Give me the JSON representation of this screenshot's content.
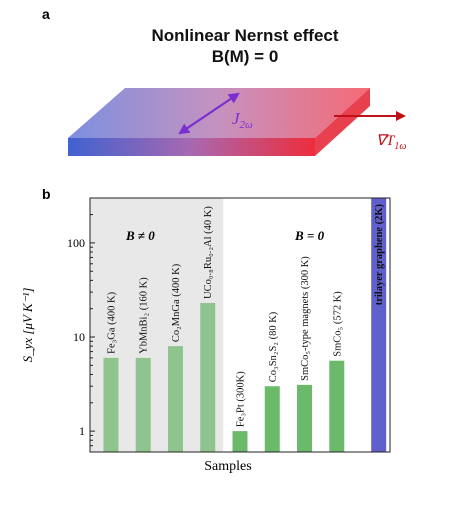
{
  "panel_a": {
    "label": "a",
    "title_line1": "Nonlinear Nernst effect",
    "title_line2": "B(M) = 0",
    "current_label": {
      "symbol": "J",
      "subscript": "2ω"
    },
    "gradient_label": {
      "symbol": "∇T",
      "subscript": "1ω"
    },
    "colors": {
      "slab_left": "#5b78d6",
      "slab_right": "#f0505a",
      "current_arrow": "#7a2fd0",
      "gradient_arrow": "#c0101a"
    }
  },
  "panel_b": {
    "label": "b",
    "ylabel": "S_yx [μV K⁻¹]",
    "xlabel": "Samples",
    "region_left_label": "B ≠ 0",
    "region_right_label": "B = 0",
    "colors": {
      "magnetic_bar": "#8fc48f",
      "nonmagnetic_bar": "#6aba6a",
      "graphene_bar": "#6060cc",
      "shade": "#e8e8e8"
    }
  },
  "chart_data": {
    "type": "bar",
    "title": "",
    "xlabel": "Samples",
    "ylabel": "S_yx [μV K⁻¹]",
    "yscale": "log",
    "ylim": [
      0.6,
      300
    ],
    "yticks": [
      1,
      10,
      100
    ],
    "categories": [
      "Fe₃Ga (400 K)",
      "YbMnBi₂ (160 K)",
      "Co₂MnGa (400 K)",
      "UCo₀.₈Ru₀.₂Al (40 K)",
      "Fe₃Pt (300K)",
      "Co₃Sn₂S₂ (80 K)",
      "SmCo₅-type magnets (300 K)",
      "SmCo₅ (572 K)",
      "trilayer graphene (2K)"
    ],
    "values": [
      6,
      6,
      8,
      23,
      1,
      3,
      3.1,
      5.6,
      300
    ],
    "groups": [
      "B≠0",
      "B≠0",
      "B≠0",
      "B≠0",
      "B=0",
      "B=0",
      "B=0",
      "B=0",
      "graphene"
    ]
  }
}
